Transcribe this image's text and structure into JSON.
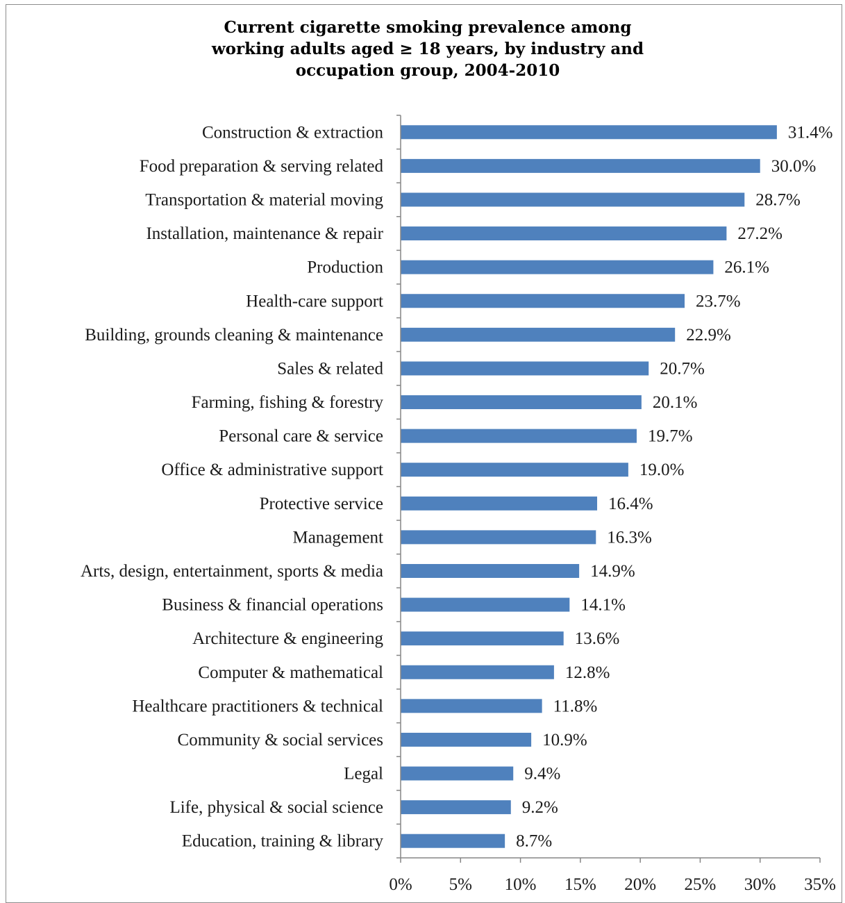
{
  "chart_data": {
    "type": "bar",
    "orientation": "horizontal",
    "title": "Current cigarette smoking prevalence among working adults aged ≥ 18 years, by industry and occupation group, 2004-2010",
    "title_lines": [
      "Current cigarette smoking prevalence among",
      "working adults aged ≥ 18 years, by industry and",
      "occupation group, 2004-2010"
    ],
    "xlabel": "",
    "ylabel": "",
    "xlim": [
      0,
      35
    ],
    "x_ticks": [
      "0%",
      "5%",
      "10%",
      "15%",
      "20%",
      "25%",
      "30%",
      "35%"
    ],
    "categories": [
      "Construction & extraction",
      "Food preparation & serving related",
      "Transportation & material moving",
      "Installation, maintenance & repair",
      "Production",
      "Health-care support",
      "Building, grounds cleaning & maintenance",
      "Sales & related",
      "Farming, fishing & forestry",
      "Personal care & service",
      "Office & administrative support",
      "Protective service",
      "Management",
      "Arts, design, entertainment, sports & media",
      "Business & financial operations",
      "Architecture & engineering",
      "Computer & mathematical",
      "Healthcare practitioners & technical",
      "Community & social services",
      "Legal",
      "Life, physical & social science",
      "Education, training & library"
    ],
    "values": [
      31.4,
      30.0,
      28.7,
      27.2,
      26.1,
      23.7,
      22.9,
      20.7,
      20.1,
      19.7,
      19.0,
      16.4,
      16.3,
      14.9,
      14.1,
      13.6,
      12.8,
      11.8,
      10.9,
      9.4,
      9.2,
      8.7
    ],
    "data_labels": [
      "31.4%",
      "30.0%",
      "28.7%",
      "27.2%",
      "26.1%",
      "23.7%",
      "22.9%",
      "20.7%",
      "20.1%",
      "19.7%",
      "19.0%",
      "16.4%",
      "16.3%",
      "14.9%",
      "14.1%",
      "13.6%",
      "12.8%",
      "11.8%",
      "10.9%",
      "9.4%",
      "9.2%",
      "8.7%"
    ],
    "bar_color": "#4f81bd",
    "grid": false,
    "legend": "none"
  }
}
